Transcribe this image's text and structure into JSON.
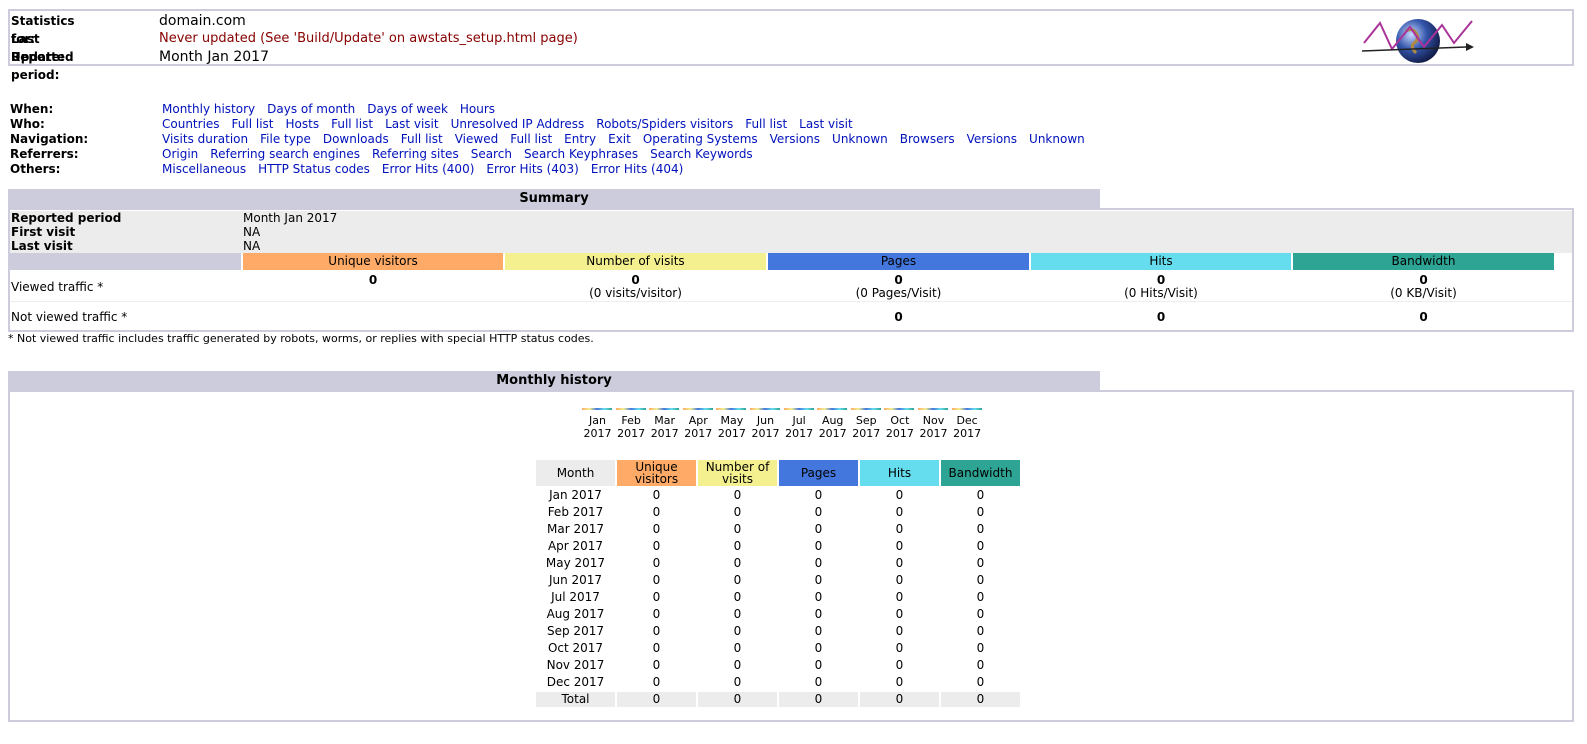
{
  "header": {
    "stats_for_label": "Statistics for:",
    "stats_for_value": "domain.com",
    "last_update_label": "Last Update:",
    "last_update_value": "Never updated (See 'Build/Update' on awstats_setup.html page)",
    "reported_period_label": "Reported period:",
    "reported_period_value": "Month Jan 2017",
    "logo_icon": "awstats-globe-logo-icon",
    "warn_color": "#880000"
  },
  "nav": {
    "when": {
      "label": "When:",
      "links": [
        "Monthly history",
        "Days of month",
        "Days of week",
        "Hours"
      ]
    },
    "who": {
      "label": "Who:",
      "links": [
        "Countries",
        "Full list",
        "Hosts",
        "Full list",
        "Last visit",
        "Unresolved IP Address",
        "Robots/Spiders visitors",
        "Full list",
        "Last visit"
      ]
    },
    "navigation": {
      "label": "Navigation:",
      "links": [
        "Visits duration",
        "File type",
        "Downloads",
        "Full list",
        "Viewed",
        "Full list",
        "Entry",
        "Exit",
        "Operating Systems",
        "Versions",
        "Unknown",
        "Browsers",
        "Versions",
        "Unknown"
      ]
    },
    "referrers": {
      "label": "Referrers:",
      "links": [
        "Origin",
        "Referring search engines",
        "Referring sites",
        "Search",
        "Search Keyphrases",
        "Search Keywords"
      ]
    },
    "others": {
      "label": "Others:",
      "links": [
        "Miscellaneous",
        "HTTP Status codes",
        "Error Hits (400)",
        "Error Hits (403)",
        "Error Hits (404)"
      ]
    }
  },
  "summary": {
    "title": "Summary",
    "reported_period_label": "Reported period",
    "reported_period_value": "Month Jan 2017",
    "first_visit_label": "First visit",
    "first_visit_value": "NA",
    "last_visit_label": "Last visit",
    "last_visit_value": "NA",
    "columns": [
      {
        "label": "Unique visitors",
        "color": "#FFAA66"
      },
      {
        "label": "Number of visits",
        "color": "#F4F090"
      },
      {
        "label": "Pages",
        "color": "#4477DD"
      },
      {
        "label": "Hits",
        "color": "#66DDEE"
      },
      {
        "label": "Bandwidth",
        "color": "#2EA495"
      }
    ],
    "viewed_label": "Viewed traffic *",
    "viewed": {
      "unique_visitors": "0",
      "visits": "0",
      "visits_sub": "(0 visits/visitor)",
      "pages": "0",
      "pages_sub": "(0 Pages/Visit)",
      "hits": "0",
      "hits_sub": "(0 Hits/Visit)",
      "bandwidth": "0",
      "bandwidth_sub": "(0 KB/Visit)"
    },
    "not_viewed_label": "Not viewed traffic *",
    "not_viewed": {
      "pages": "0",
      "hits": "0",
      "bandwidth": "0"
    },
    "footnote": "* Not viewed traffic includes traffic generated by robots, worms, or replies with special HTTP status codes."
  },
  "monthly": {
    "title": "Monthly history",
    "chart_months": [
      {
        "m": "Jan",
        "y": "2017"
      },
      {
        "m": "Feb",
        "y": "2017"
      },
      {
        "m": "Mar",
        "y": "2017"
      },
      {
        "m": "Apr",
        "y": "2017"
      },
      {
        "m": "May",
        "y": "2017"
      },
      {
        "m": "Jun",
        "y": "2017"
      },
      {
        "m": "Jul",
        "y": "2017"
      },
      {
        "m": "Aug",
        "y": "2017"
      },
      {
        "m": "Sep",
        "y": "2017"
      },
      {
        "m": "Oct",
        "y": "2017"
      },
      {
        "m": "Nov",
        "y": "2017"
      },
      {
        "m": "Dec",
        "y": "2017"
      }
    ],
    "headers": [
      "Month",
      "Unique visitors",
      "Number of visits",
      "Pages",
      "Hits",
      "Bandwidth"
    ],
    "rows": [
      [
        "Jan 2017",
        "0",
        "0",
        "0",
        "0",
        "0"
      ],
      [
        "Feb 2017",
        "0",
        "0",
        "0",
        "0",
        "0"
      ],
      [
        "Mar 2017",
        "0",
        "0",
        "0",
        "0",
        "0"
      ],
      [
        "Apr 2017",
        "0",
        "0",
        "0",
        "0",
        "0"
      ],
      [
        "May 2017",
        "0",
        "0",
        "0",
        "0",
        "0"
      ],
      [
        "Jun 2017",
        "0",
        "0",
        "0",
        "0",
        "0"
      ],
      [
        "Jul 2017",
        "0",
        "0",
        "0",
        "0",
        "0"
      ],
      [
        "Aug 2017",
        "0",
        "0",
        "0",
        "0",
        "0"
      ],
      [
        "Sep 2017",
        "0",
        "0",
        "0",
        "0",
        "0"
      ],
      [
        "Oct 2017",
        "0",
        "0",
        "0",
        "0",
        "0"
      ],
      [
        "Nov 2017",
        "0",
        "0",
        "0",
        "0",
        "0"
      ],
      [
        "Dec 2017",
        "0",
        "0",
        "0",
        "0",
        "0"
      ]
    ],
    "total": [
      "Total",
      "0",
      "0",
      "0",
      "0",
      "0"
    ]
  }
}
